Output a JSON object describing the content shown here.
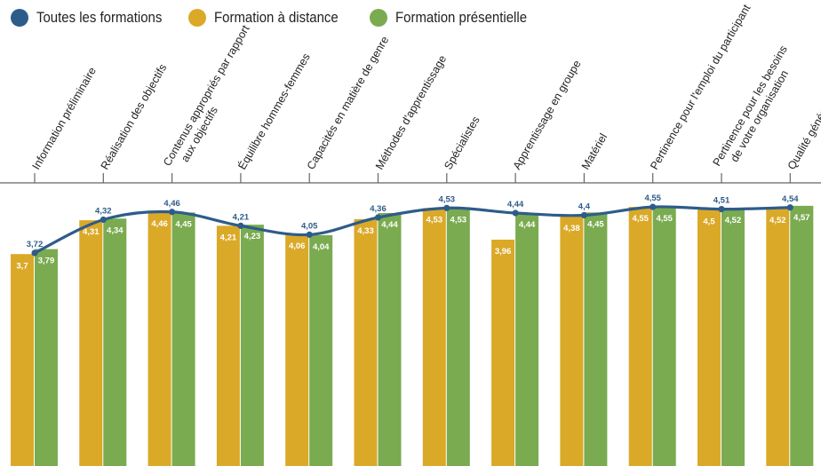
{
  "legend": [
    {
      "label": "Toutes les formations",
      "color": "#2e5c8a"
    },
    {
      "label": "Formation à distance",
      "color": "#dba928"
    },
    {
      "label": "Formation présentielle",
      "color": "#7aab50"
    }
  ],
  "chart_data": {
    "type": "bar",
    "categories": [
      [
        "Information préliminaire"
      ],
      [
        "Réalisation des objectifs"
      ],
      [
        "Contenus appropriés par rapport",
        "aux objectifs"
      ],
      [
        "Équilibre hommes-femmes"
      ],
      [
        "Capacités en matière de genre"
      ],
      [
        "Méthodes d'apprentissage"
      ],
      [
        "Spécialistes"
      ],
      [
        "Apprentissage en groupe"
      ],
      [
        "Matériel"
      ],
      [
        "Pertinence pour l'emploi du participant"
      ],
      [
        "Pertinence pour les besoins",
        "de votre organisation"
      ],
      [
        "Qualité générale"
      ]
    ],
    "series": [
      {
        "name": "Formation à distance",
        "type": "bar",
        "color": "#dba928",
        "values": [
          3.7,
          4.31,
          4.46,
          4.21,
          4.06,
          4.33,
          4.53,
          3.96,
          4.38,
          4.55,
          4.5,
          4.52
        ],
        "labels": [
          "3,7",
          "4,31",
          "4,46",
          "4,21",
          "4,06",
          "4,33",
          "4,53",
          "3,96",
          "4,38",
          "4,55",
          "4,5",
          "4,52"
        ]
      },
      {
        "name": "Formation présentielle",
        "type": "bar",
        "color": "#7aab50",
        "values": [
          3.79,
          4.34,
          4.45,
          4.23,
          4.04,
          4.44,
          4.53,
          4.44,
          4.45,
          4.55,
          4.52,
          4.57
        ],
        "labels": [
          "3,79",
          "4,34",
          "4,45",
          "4,23",
          "4,04",
          "4,44",
          "4,53",
          "4,44",
          "4,45",
          "4,55",
          "4,52",
          "4,57"
        ]
      },
      {
        "name": "Toutes les formations",
        "type": "line",
        "color": "#2e5c8a",
        "values": [
          3.72,
          4.32,
          4.46,
          4.21,
          4.05,
          4.36,
          4.53,
          4.44,
          4.4,
          4.55,
          4.51,
          4.54
        ],
        "labels": [
          "3,72",
          "4,32",
          "4,46",
          "4,21",
          "4,05",
          "4,36",
          "4,53",
          "4,44",
          "4,4",
          "4,55",
          "4,51",
          "4,54"
        ]
      }
    ]
  }
}
